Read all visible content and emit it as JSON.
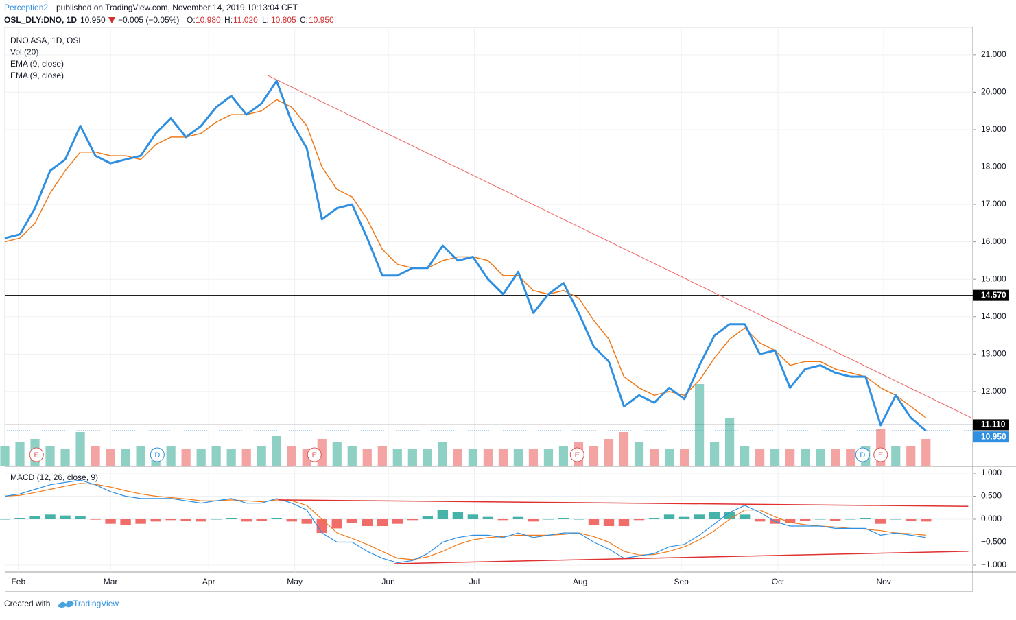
{
  "header": {
    "author": "Perception2",
    "published": "published on TradingView.com, November 14, 2019 10:13:04 CET",
    "symbol": "OSL_DLY:DNO, 1D",
    "last": "10.950",
    "change": "−0.005 (−0.05%)",
    "ohlc": [
      {
        "label": "O:",
        "value": "10.980"
      },
      {
        "label": "H:",
        "value": "11.020"
      },
      {
        "label": "L:",
        "value": "10.805"
      },
      {
        "label": "C:",
        "value": "10.950"
      }
    ]
  },
  "legend": [
    "DNO ASA, 1D, OSL",
    "Vol (20)",
    "EMA (9, close)",
    "EMA (9, close)"
  ],
  "footer": {
    "text": "Created with",
    "brand": "TradingView"
  },
  "chart_data": {
    "type": "line",
    "xlim": [
      0,
      64.1
    ],
    "xticks": [
      {
        "value": 0.9,
        "label": "Feb"
      },
      {
        "value": 7.0,
        "label": "Mar"
      },
      {
        "value": 13.5,
        "label": "Apr"
      },
      {
        "value": 19.2,
        "label": "May"
      },
      {
        "value": 25.4,
        "label": "Jun"
      },
      {
        "value": 31.1,
        "label": "Jul"
      },
      {
        "value": 38.1,
        "label": "Aug"
      },
      {
        "value": 44.8,
        "label": "Sep"
      },
      {
        "value": 51.2,
        "label": "Oct"
      },
      {
        "value": 58.2,
        "label": "Nov"
      }
    ],
    "ylim": [
      10.0,
      21.73
    ],
    "yticks": [
      {
        "value": 12,
        "label": "12.000"
      },
      {
        "value": 13,
        "label": "13.000"
      },
      {
        "value": 14,
        "label": "14.000"
      },
      {
        "value": 15,
        "label": "15.000"
      },
      {
        "value": 16,
        "label": "16.000"
      },
      {
        "value": 17,
        "label": "17.000"
      },
      {
        "value": 18,
        "label": "18.000"
      },
      {
        "value": 19,
        "label": "19.000"
      },
      {
        "value": 20,
        "label": "20.000"
      },
      {
        "value": 21,
        "label": "21.000"
      }
    ],
    "grid": true,
    "series": [
      {
        "name": "DNO ASA",
        "color": "#2f8fe0",
        "values": [
          16.1,
          16.2,
          16.9,
          17.9,
          18.2,
          19.1,
          18.3,
          18.1,
          18.2,
          18.3,
          18.9,
          19.3,
          18.8,
          19.1,
          19.6,
          19.9,
          19.4,
          19.7,
          20.3,
          19.2,
          18.5,
          16.6,
          16.9,
          17.0,
          16.1,
          15.1,
          15.1,
          15.3,
          15.3,
          15.9,
          15.5,
          15.6,
          15.0,
          14.6,
          15.2,
          14.1,
          14.6,
          14.9,
          14.1,
          13.2,
          12.8,
          11.6,
          11.9,
          11.7,
          12.1,
          11.8,
          12.7,
          13.5,
          13.8,
          13.8,
          13.0,
          13.1,
          12.1,
          12.6,
          12.7,
          12.5,
          12.4,
          12.4,
          11.1,
          11.9,
          11.3,
          10.95
        ]
      },
      {
        "name": "EMA (9, close)",
        "color": "#f07a1a",
        "values": [
          16.0,
          16.1,
          16.5,
          17.3,
          17.9,
          18.4,
          18.4,
          18.3,
          18.3,
          18.2,
          18.6,
          18.8,
          18.8,
          18.9,
          19.2,
          19.4,
          19.4,
          19.5,
          19.8,
          19.6,
          19.1,
          18.0,
          17.4,
          17.2,
          16.6,
          15.8,
          15.4,
          15.3,
          15.3,
          15.5,
          15.6,
          15.6,
          15.5,
          15.1,
          15.1,
          14.7,
          14.6,
          14.7,
          14.5,
          13.9,
          13.4,
          12.4,
          12.1,
          11.9,
          12.0,
          11.9,
          12.3,
          12.9,
          13.4,
          13.7,
          13.3,
          13.1,
          12.7,
          12.8,
          12.8,
          12.6,
          12.5,
          12.4,
          12.1,
          11.9,
          11.6,
          11.3
        ]
      }
    ],
    "levels": [
      {
        "value": 14.57,
        "label": "14.570"
      },
      {
        "value": 11.11,
        "label": "11.110"
      }
    ],
    "last_price": {
      "value": 10.95,
      "label": "10.950"
    },
    "trendline": {
      "x": [
        17.4,
        64.0
      ],
      "y": [
        20.45,
        11.3
      ],
      "color": "#f06060"
    },
    "events": [
      {
        "label": "E",
        "x": 2.1
      },
      {
        "label": "D",
        "x": 10.1
      },
      {
        "label": "E",
        "x": 20.5
      },
      {
        "label": "E",
        "x": 37.9
      },
      {
        "label": "D",
        "x": 56.8
      },
      {
        "label": "E",
        "x": 58.0
      }
    ],
    "volume": {
      "ylim": [
        0,
        15
      ],
      "up_color": "#8fd0c4",
      "down_color": "#f4a3a3",
      "values": [
        3,
        3.5,
        4,
        3,
        2.5,
        5,
        3,
        2.5,
        2.5,
        3,
        2.5,
        3,
        2.5,
        2.5,
        3,
        2.5,
        2.5,
        3,
        4.5,
        3,
        2.5,
        4,
        3.5,
        3,
        2.5,
        3,
        2.5,
        2.5,
        2.5,
        3.5,
        2.5,
        2.5,
        2.5,
        2.5,
        2.5,
        2.5,
        2.5,
        3,
        3.5,
        3,
        4,
        5,
        3.5,
        2.5,
        2.5,
        2.5,
        12,
        3.5,
        7,
        3,
        2.5,
        2.5,
        2.5,
        2.5,
        2.5,
        2.5,
        2.5,
        3,
        5.5,
        3,
        3,
        4
      ]
    },
    "macd": {
      "title": "MACD (12, 26, close, 9)",
      "ylim": [
        -1.15,
        1.12
      ],
      "yticks": [
        {
          "value": 1,
          "label": "1.000"
        },
        {
          "value": 0.5,
          "label": "0.500"
        },
        {
          "value": 0,
          "label": "0.000"
        },
        {
          "value": -0.5,
          "label": "−0.500"
        },
        {
          "value": -1,
          "label": "−1.000"
        }
      ],
      "macd_color": "#2f8fe0",
      "signal_color": "#f07a1a",
      "hist_up_color": "#26a69a",
      "hist_down_color": "#ef5350",
      "macd": [
        0.5,
        0.55,
        0.65,
        0.75,
        0.8,
        0.85,
        0.75,
        0.6,
        0.5,
        0.45,
        0.45,
        0.45,
        0.4,
        0.35,
        0.4,
        0.45,
        0.35,
        0.35,
        0.45,
        0.35,
        0.2,
        -0.3,
        -0.5,
        -0.5,
        -0.7,
        -0.85,
        -0.95,
        -0.9,
        -0.75,
        -0.5,
        -0.4,
        -0.35,
        -0.35,
        -0.4,
        -0.3,
        -0.4,
        -0.35,
        -0.3,
        -0.3,
        -0.5,
        -0.65,
        -0.85,
        -0.8,
        -0.75,
        -0.6,
        -0.55,
        -0.35,
        -0.1,
        0.15,
        0.3,
        0.15,
        -0.05,
        -0.15,
        -0.15,
        -0.15,
        -0.2,
        -0.2,
        -0.2,
        -0.35,
        -0.3,
        -0.35,
        -0.4
      ],
      "signal": [
        0.5,
        0.52,
        0.58,
        0.65,
        0.72,
        0.78,
        0.76,
        0.7,
        0.62,
        0.55,
        0.5,
        0.47,
        0.44,
        0.4,
        0.4,
        0.42,
        0.4,
        0.38,
        0.42,
        0.4,
        0.3,
        0.0,
        -0.3,
        -0.42,
        -0.55,
        -0.7,
        -0.85,
        -0.88,
        -0.82,
        -0.7,
        -0.55,
        -0.45,
        -0.4,
        -0.38,
        -0.35,
        -0.35,
        -0.35,
        -0.33,
        -0.3,
        -0.38,
        -0.5,
        -0.7,
        -0.78,
        -0.77,
        -0.7,
        -0.6,
        -0.45,
        -0.25,
        0.0,
        0.2,
        0.2,
        0.05,
        -0.07,
        -0.12,
        -0.15,
        -0.17,
        -0.2,
        -0.22,
        -0.25,
        -0.3,
        -0.32,
        -0.35
      ],
      "histogram": [
        0,
        0.03,
        0.07,
        0.1,
        0.08,
        0.07,
        -0.01,
        -0.1,
        -0.12,
        -0.1,
        -0.05,
        -0.02,
        -0.04,
        -0.05,
        0,
        0.03,
        -0.05,
        -0.03,
        0.03,
        -0.05,
        -0.1,
        -0.3,
        -0.2,
        -0.08,
        -0.15,
        -0.15,
        -0.1,
        -0.02,
        0.07,
        0.2,
        0.15,
        0.1,
        0.05,
        -0.02,
        0.05,
        -0.05,
        0,
        0.03,
        0,
        -0.12,
        -0.15,
        -0.15,
        -0.02,
        0.02,
        0.1,
        0.05,
        0.1,
        0.15,
        0.15,
        0.1,
        -0.05,
        -0.1,
        -0.08,
        -0.03,
        0,
        -0.03,
        0,
        0.02,
        -0.1,
        0,
        -0.03,
        -0.05
      ],
      "trendlines": [
        {
          "x": [
            18.1,
            63.8
          ],
          "y": [
            0.42,
            0.28
          ]
        },
        {
          "x": [
            25.8,
            63.8
          ],
          "y": [
            -0.97,
            -0.7
          ]
        }
      ],
      "trend_color": "#e03030"
    }
  }
}
